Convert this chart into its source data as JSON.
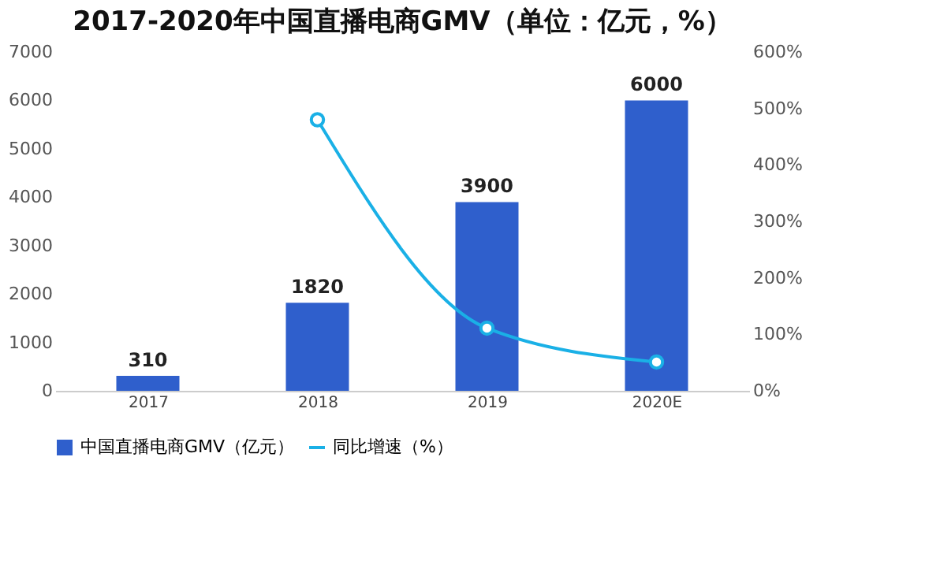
{
  "chart_data": {
    "type": "bar",
    "title": "2017-2020年中国直播电商GMV（单位：亿元，%）",
    "categories": [
      "2017",
      "2018",
      "2019",
      "2020E"
    ],
    "series": [
      {
        "name": "中国直播电商GMV（亿元）",
        "color": "#2f5fcc",
        "values": [
          310,
          1820,
          3900,
          6000
        ],
        "value_labels": [
          "310",
          "1820",
          "3900",
          "6000"
        ]
      },
      {
        "name": "同比增速（%）",
        "type": "line",
        "axis": "y2",
        "color": "#1ab0e6",
        "values": [
          null,
          480,
          111,
          51
        ],
        "marker": "circle"
      }
    ],
    "ylim": [
      0,
      7000
    ],
    "yticks": [
      0,
      1000,
      2000,
      3000,
      4000,
      5000,
      6000,
      7000
    ],
    "y2lim": [
      0,
      600
    ],
    "y2ticks": [
      {
        "value": 0,
        "label": "0%"
      },
      {
        "value": 100,
        "label": "100%"
      },
      {
        "value": 200,
        "label": "200%"
      },
      {
        "value": 300,
        "label": "300%"
      },
      {
        "value": 400,
        "label": "400%"
      },
      {
        "value": 500,
        "label": "500%"
      },
      {
        "value": 600,
        "label": "600%"
      }
    ],
    "grid": false,
    "legend": "bottom"
  }
}
